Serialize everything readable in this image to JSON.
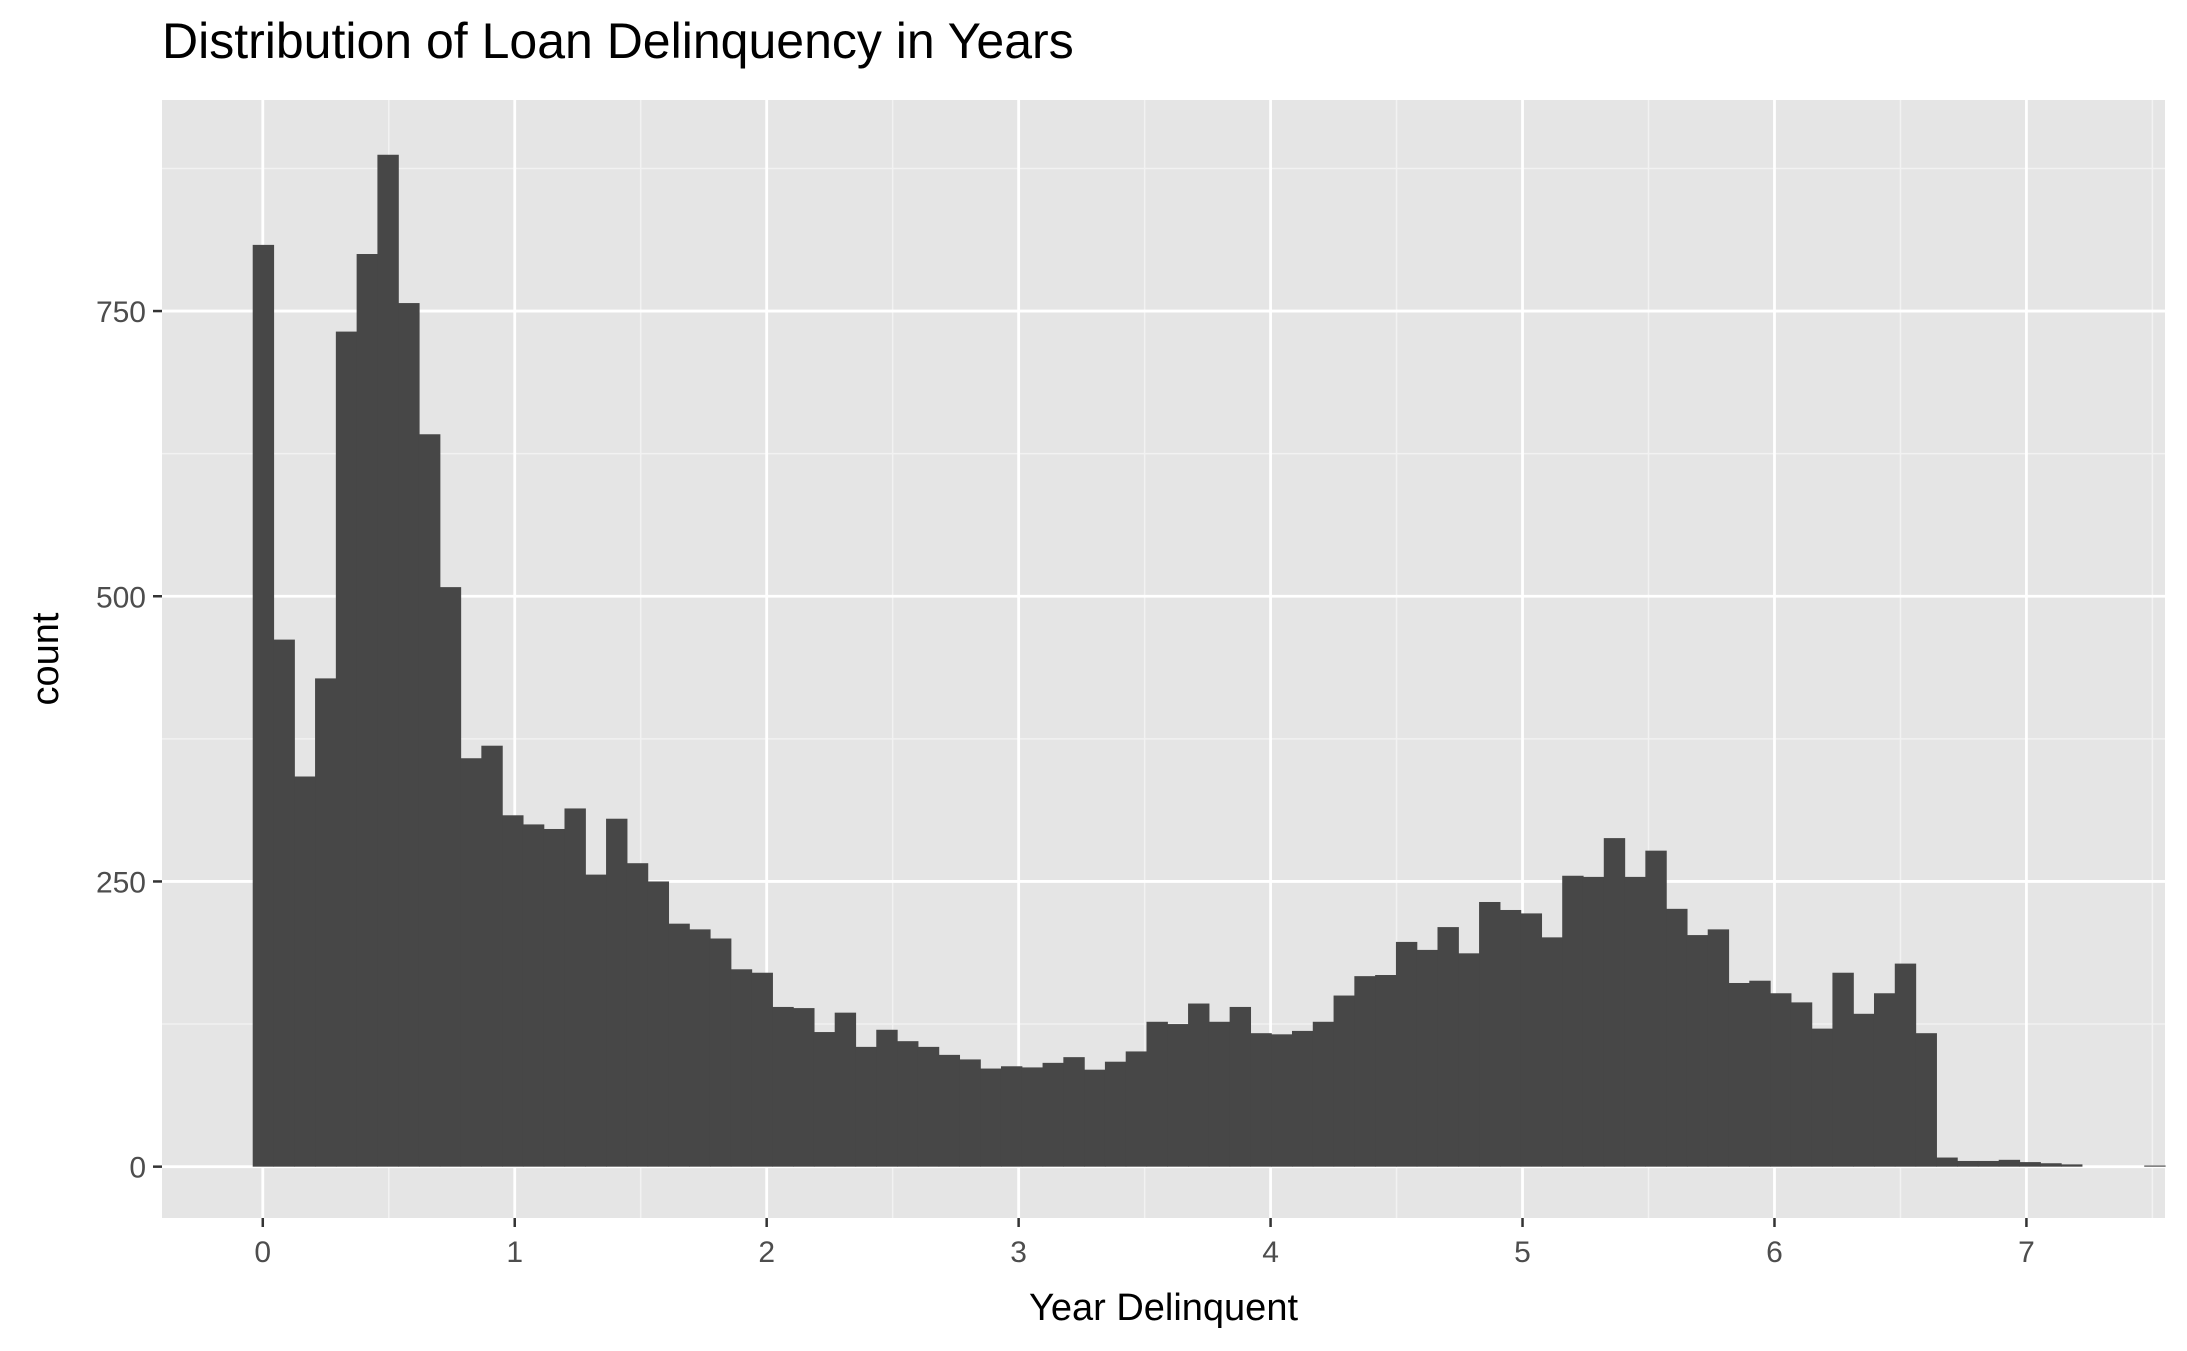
{
  "chart_data": {
    "type": "bar",
    "title": "Distribution of Loan Delinquency in Years",
    "xlabel": "Year Delinquent",
    "ylabel": "count",
    "xlim": [
      -0.4,
      7.55
    ],
    "ylim": [
      -45,
      935
    ],
    "x_ticks": [
      0,
      1,
      2,
      3,
      4,
      5,
      6,
      7
    ],
    "y_ticks": [
      0,
      250,
      500,
      750
    ],
    "x_tick_labels": [
      "0",
      "1",
      "2",
      "3",
      "4",
      "5",
      "6",
      "7"
    ],
    "y_tick_labels": [
      "0",
      "250",
      "500",
      "750"
    ],
    "grid": true,
    "bin_start": -0.04,
    "bin_width": 0.0825,
    "values": [
      808,
      462,
      342,
      428,
      732,
      800,
      887,
      757,
      642,
      508,
      358,
      369,
      308,
      300,
      296,
      314,
      256,
      305,
      266,
      250,
      213,
      208,
      200,
      173,
      170,
      140,
      139,
      118,
      135,
      105,
      120,
      110,
      105,
      98,
      94,
      86,
      88,
      87,
      91,
      96,
      85,
      92,
      101,
      127,
      125,
      143,
      127,
      140,
      117,
      116,
      119,
      127,
      150,
      167,
      168,
      197,
      190,
      210,
      187,
      232,
      225,
      222,
      201,
      255,
      254,
      288,
      254,
      277,
      226,
      203,
      208,
      161,
      163,
      152,
      144,
      121,
      170,
      134,
      152,
      178,
      117,
      8,
      5,
      5,
      6,
      4,
      3,
      2,
      0,
      0,
      0,
      1
    ],
    "colors": {
      "panel": "#e5e5e5",
      "grid_major": "#ffffff",
      "grid_minor": "#f2f2f2",
      "bar": "#474747",
      "tick": "#333333"
    }
  }
}
